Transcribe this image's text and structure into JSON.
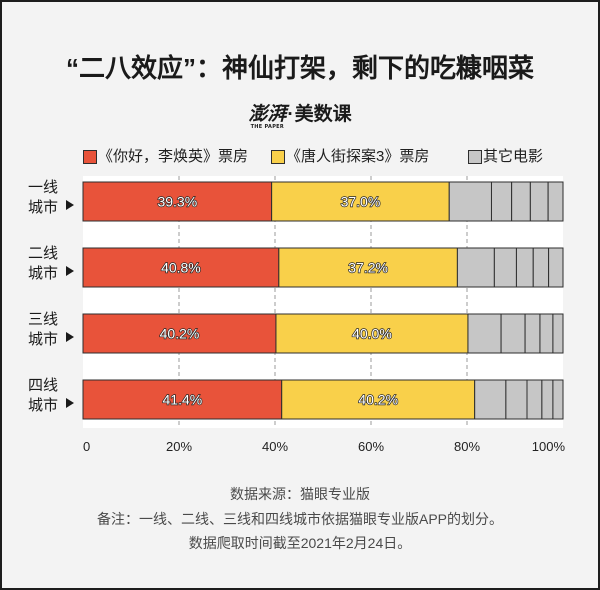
{
  "header": {
    "logo": {
      "brand": "澎湃",
      "sub": "THE PAPER",
      "separator": "·",
      "column": "美数课"
    }
  },
  "chart_data": {
    "type": "bar",
    "orientation": "horizontal",
    "stacked": "percent",
    "title": "“二八效应”：神仙打架，剩下的吃糠咽菜",
    "categories": [
      "一线城市",
      "二线城市",
      "三线城市",
      "四线城市"
    ],
    "series": [
      {
        "name": "《你好，李焕英》票房",
        "color": "#e8533a",
        "values": [
          39.3,
          40.8,
          40.2,
          41.4
        ],
        "labels": [
          "39.3%",
          "40.8%",
          "40.2%",
          "41.4%"
        ]
      },
      {
        "name": "《唐人街探案3》票房",
        "color": "#f9d04a",
        "values": [
          37.0,
          37.2,
          40.0,
          40.2
        ],
        "labels": [
          "37.0%",
          "37.2%",
          "40.0%",
          "40.2%"
        ]
      },
      {
        "name": "其它电影",
        "color": "#c6c6c6",
        "values": [
          23.7,
          22.0,
          19.8,
          18.4
        ],
        "segments": [
          [
            8.8,
            4.2,
            3.9,
            3.7,
            3.1
          ],
          [
            7.7,
            4.6,
            3.5,
            3.2,
            3.0
          ],
          [
            6.9,
            5.0,
            3.1,
            2.7,
            2.1
          ],
          [
            6.5,
            4.4,
            3.1,
            2.3,
            2.1
          ]
        ]
      }
    ],
    "xlim": [
      0,
      100
    ],
    "x_ticks": [
      0,
      20,
      40,
      60,
      80,
      100
    ],
    "x_tick_labels": [
      "0",
      "20%",
      "40%",
      "60%",
      "80%",
      "100%"
    ],
    "grid": true,
    "grid_style": "dashed",
    "legend_position": "top"
  },
  "footer": {
    "source": "数据来源：猫眼专业版",
    "note": "备注：一线、二线、三线和四线城市依据猫眼专业版APP的划分。",
    "date": "数据爬取时间截至2021年2月24日。"
  },
  "colors": {
    "page_bg": "#f3f3f3",
    "plot_bg": "#ffffff",
    "frame": "#1c1c1c",
    "bar_outline": "#2e2e2e",
    "gridline": "#9b9b9b"
  },
  "icons": {
    "category_marker": "triangle-right-icon"
  }
}
